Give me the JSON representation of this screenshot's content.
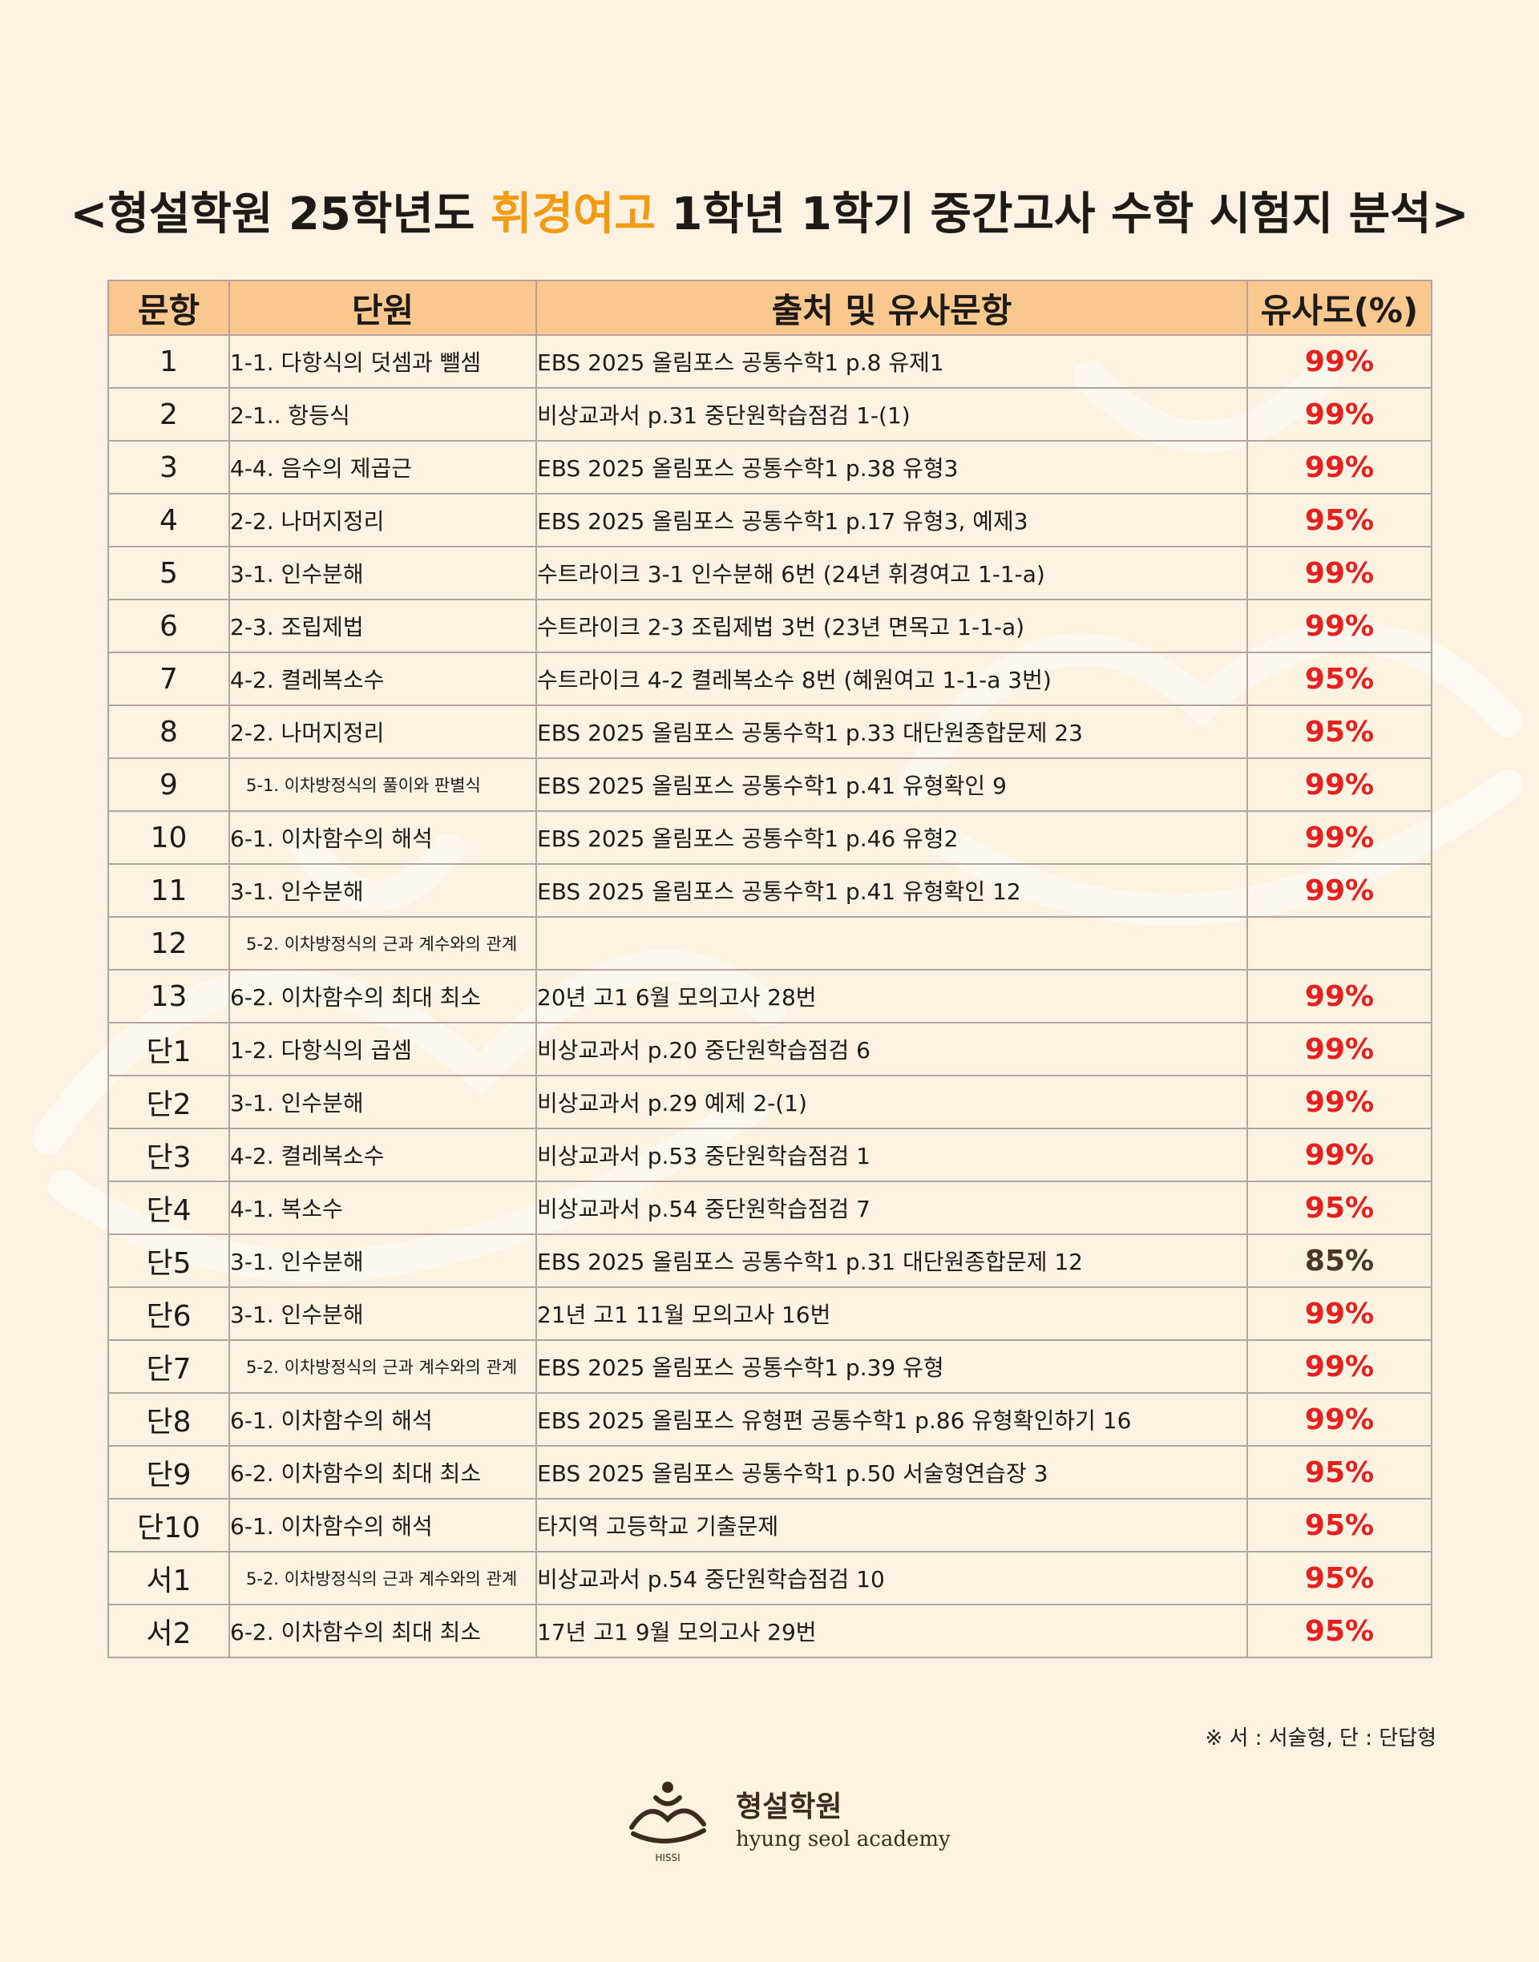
{
  "title": {
    "prefix": "<형설학원 25학년도 ",
    "highlight": "휘경여고",
    "suffix": " 1학년 1학기 중간고사 수학 시험지 분석>"
  },
  "table": {
    "headers": [
      "문항",
      "단원",
      "출처 및 유사문항",
      "유사도(%)"
    ],
    "rows": [
      {
        "no": "1",
        "unit": "1-1. 다항식의 덧셈과 뺄셈",
        "source": "EBS 2025 올림포스 공통수학1 p.8 유제1",
        "pct": "99%"
      },
      {
        "no": "2",
        "unit": "2-1.. 항등식",
        "source": "비상교과서 p.31 중단원학습점검 1-(1)",
        "pct": "99%"
      },
      {
        "no": "3",
        "unit": "4-4. 음수의 제곱근",
        "source": "EBS 2025 올림포스 공통수학1 p.38 유형3",
        "pct": "99%"
      },
      {
        "no": "4",
        "unit": "2-2. 나머지정리",
        "source": "EBS 2025 올림포스 공통수학1 p.17 유형3, 예제3",
        "pct": "95%"
      },
      {
        "no": "5",
        "unit": "3-1. 인수분해",
        "source": "수트라이크 3-1 인수분해 6번 (24년 휘경여고 1-1-a)",
        "pct": "99%"
      },
      {
        "no": "6",
        "unit": "2-3. 조립제법",
        "source": "수트라이크 2-3 조립제법 3번 (23년 면목고 1-1-a)",
        "pct": "99%"
      },
      {
        "no": "7",
        "unit": "4-2. 켤레복소수",
        "source": "수트라이크 4-2 켤레복소수 8번 (혜원여고 1-1-a 3번)",
        "pct": "95%"
      },
      {
        "no": "8",
        "unit": "2-2. 나머지정리",
        "source": "EBS 2025 올림포스 공통수학1 p.33 대단원종합문제 23",
        "pct": "95%"
      },
      {
        "no": "9",
        "unit": "5-1. 이차방정식의 풀이와 판별식",
        "source": "EBS 2025 올림포스 공통수학1 p.41 유형확인 9",
        "pct": "99%"
      },
      {
        "no": "10",
        "unit": "6-1. 이차함수의 해석",
        "source": "EBS 2025 올림포스 공통수학1 p.46 유형2",
        "pct": "99%"
      },
      {
        "no": "11",
        "unit": "3-1. 인수분해",
        "source": "EBS 2025 올림포스 공통수학1 p.41 유형확인 12",
        "pct": "99%"
      },
      {
        "no": "12",
        "unit": "5-2. 이차방정식의 근과 계수와의 관계",
        "source": "",
        "pct": ""
      },
      {
        "no": "13",
        "unit": "6-2. 이차함수의 최대 최소",
        "source": "20년 고1 6월 모의고사 28번",
        "pct": "99%"
      },
      {
        "no": "단1",
        "unit": "1-2. 다항식의 곱셈",
        "source": "비상교과서 p.20 중단원학습점검 6",
        "pct": "99%"
      },
      {
        "no": "단2",
        "unit": "3-1. 인수분해",
        "source": "비상교과서 p.29 예제 2-(1)",
        "pct": "99%"
      },
      {
        "no": "단3",
        "unit": "4-2. 켤레복소수",
        "source": "비상교과서 p.53 중단원학습점검 1",
        "pct": "99%"
      },
      {
        "no": "단4",
        "unit": "4-1. 복소수",
        "source": "비상교과서 p.54 중단원학습점검 7",
        "pct": "95%"
      },
      {
        "no": "단5",
        "unit": "3-1. 인수분해",
        "source": "EBS 2025 올림포스 공통수학1 p.31 대단원종합문제 12",
        "pct": "85%"
      },
      {
        "no": "단6",
        "unit": "3-1. 인수분해",
        "source": "21년 고1 11월 모의고사 16번",
        "pct": "99%"
      },
      {
        "no": "단7",
        "unit": "5-2. 이차방정식의 근과 계수와의 관계",
        "source": "EBS 2025 올림포스 공통수학1 p.39 유형",
        "pct": "99%"
      },
      {
        "no": "단8",
        "unit": "6-1. 이차함수의 해석",
        "source": "EBS 2025 올림포스 유형편 공통수학1 p.86 유형확인하기 16",
        "pct": "99%"
      },
      {
        "no": "단9",
        "unit": "6-2. 이차함수의 최대 최소",
        "source": "EBS 2025 올림포스 공통수학1 p.50 서술형연습장 3",
        "pct": "95%"
      },
      {
        "no": "단10",
        "unit": "6-1. 이차함수의 해석",
        "source": "타지역 고등학교 기출문제",
        "pct": "95%"
      },
      {
        "no": "서1",
        "unit": "5-2. 이차방정식의 근과 계수와의 관계",
        "source": "비상교과서 p.54 중단원학습점검 10",
        "pct": "95%"
      },
      {
        "no": "서2",
        "unit": "6-2. 이차함수의 최대 최소",
        "source": "17년 고1 9월 모의고사 29번",
        "pct": "95%"
      }
    ]
  },
  "note": "※ 서 : 서술형, 단 : 단답형",
  "brand": {
    "name_ko": "형설학원",
    "name_en": "hyung seol academy",
    "logo_text": "HISSI"
  },
  "colors": {
    "background": "#fdf2e2",
    "header": "#f8c88e",
    "highlight": "#f29a12",
    "pct_red": "#e5201f",
    "pct_dark": "#4a3526",
    "border": "#b6a3a0"
  }
}
